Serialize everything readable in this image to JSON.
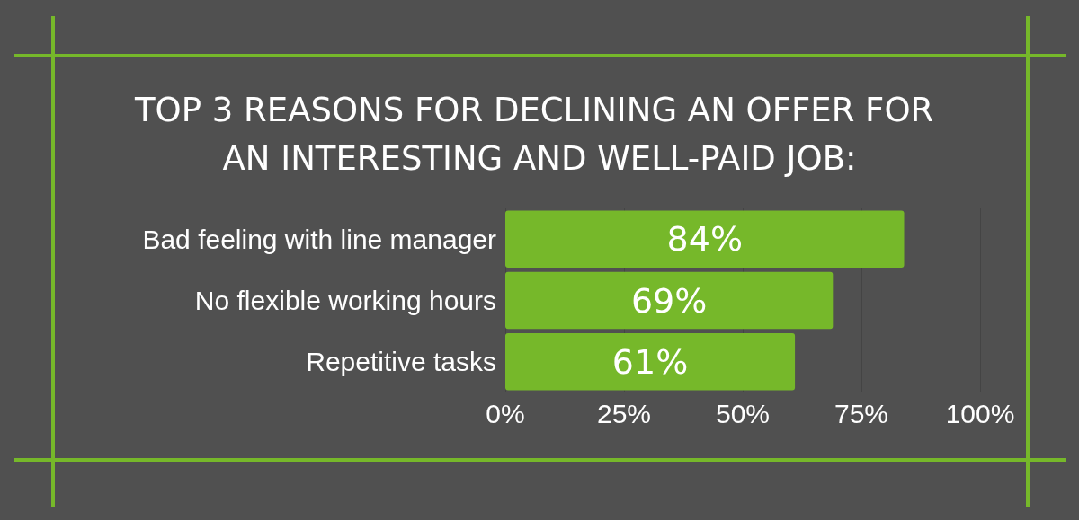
{
  "chart_data": {
    "type": "bar",
    "orientation": "horizontal",
    "title": "TOP 3 REASONS FOR DECLINING AN OFFER FOR AN INTERESTING AND WELL-PAID JOB:",
    "categories": [
      "Bad feeling with line manager",
      "No flexible working hours",
      "Repetitive tasks"
    ],
    "values": [
      84,
      69,
      61
    ],
    "color": "#76b82a",
    "value_labels": [
      "84%",
      "69%",
      "61%"
    ],
    "xlim": [
      0,
      100
    ],
    "xticks": [
      {
        "value": 0,
        "label": "0%"
      },
      {
        "value": 25,
        "label": "25%"
      },
      {
        "value": 50,
        "label": "50%"
      },
      {
        "value": 75,
        "label": "75%"
      },
      {
        "value": 100,
        "label": "100%"
      }
    ],
    "grid": "x"
  }
}
